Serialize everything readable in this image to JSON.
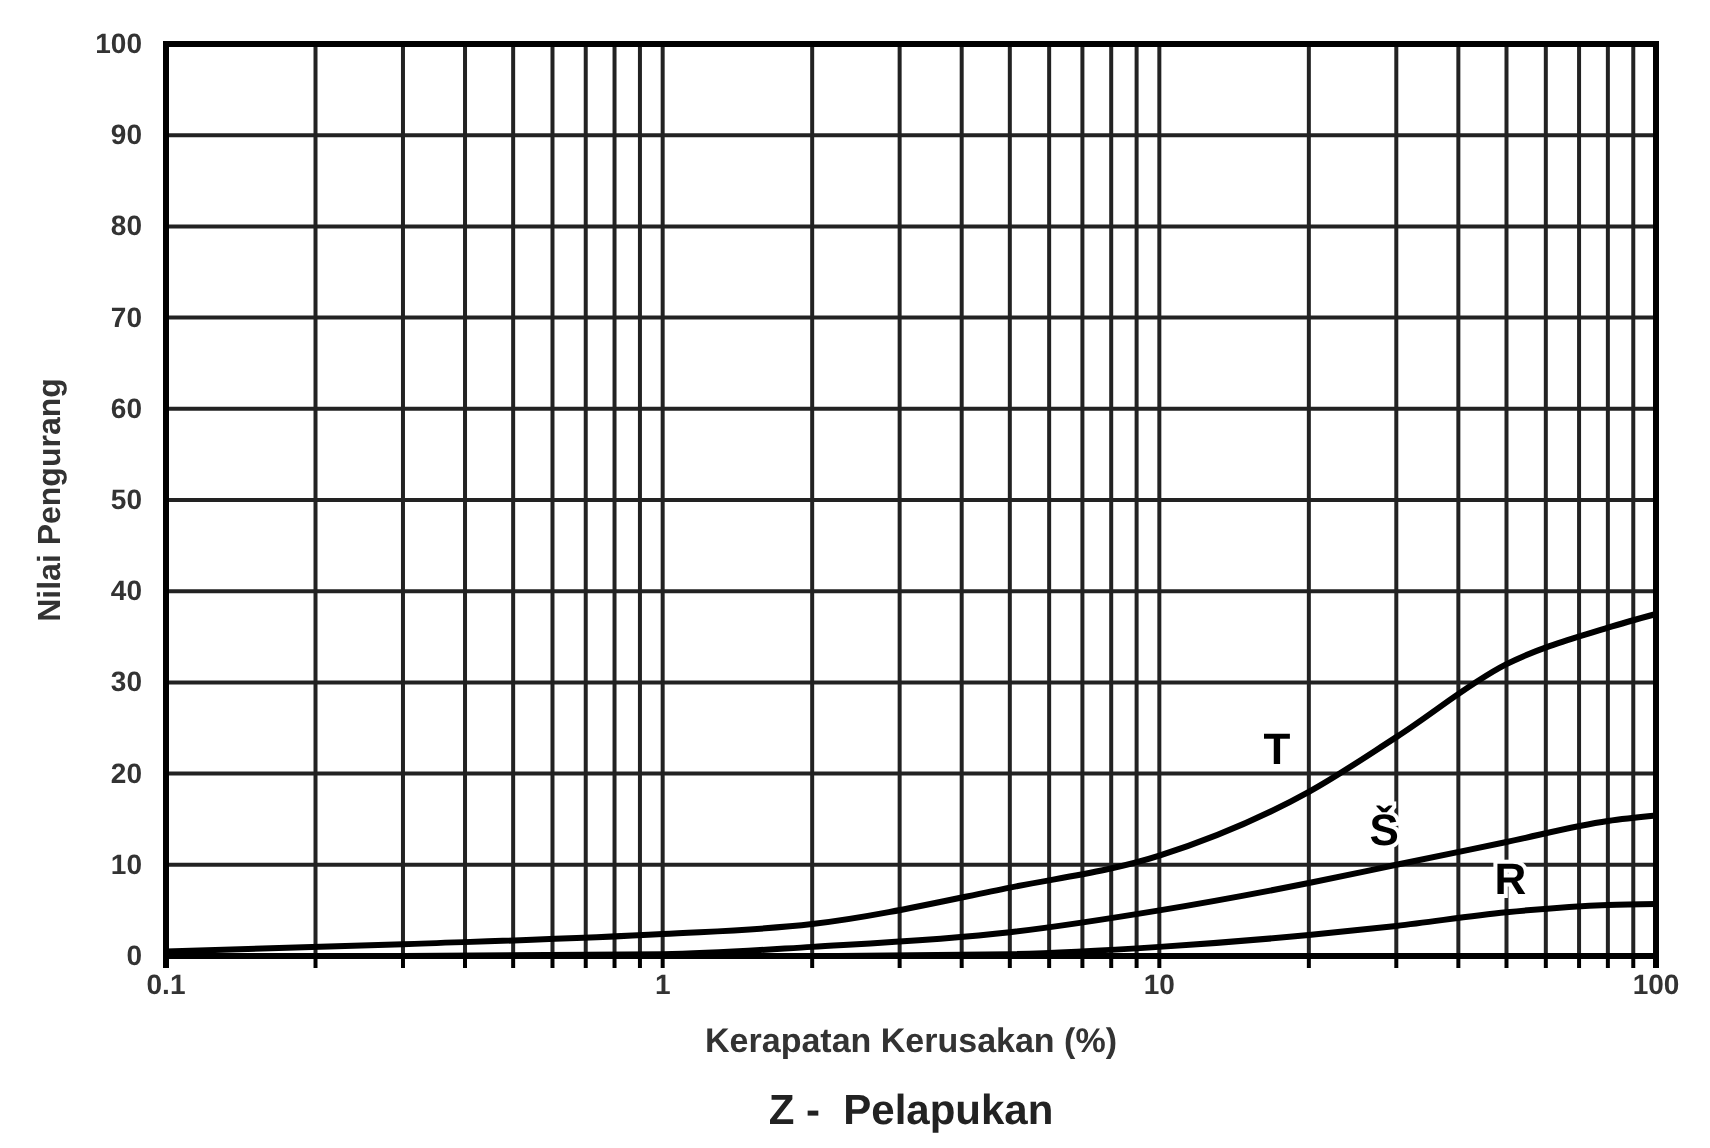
{
  "chart_data": {
    "type": "line",
    "title": "Z -  Pelapukan",
    "xlabel": "Kerapatan Kerusakan (%)",
    "ylabel": "Nilai Pengurang",
    "log": "x",
    "grid": true,
    "legend": false,
    "marker": "none",
    "line_style": "solid",
    "xlim": [
      0.1,
      100
    ],
    "ylim": [
      0,
      100
    ],
    "xticks": [
      0.1,
      {
        "value": 0.2,
        "label": null
      },
      {
        "value": 0.3,
        "label": null
      },
      {
        "value": 0.4,
        "label": null
      },
      {
        "value": 0.5,
        "label": null
      },
      {
        "value": 0.6,
        "label": null
      },
      {
        "value": 0.7,
        "label": null
      },
      {
        "value": 0.8,
        "label": null
      },
      {
        "value": 0.9,
        "label": null
      },
      1,
      {
        "value": 2,
        "label": null
      },
      {
        "value": 3,
        "label": null
      },
      {
        "value": 4,
        "label": null
      },
      {
        "value": 5,
        "label": null
      },
      {
        "value": 6,
        "label": null
      },
      {
        "value": 7,
        "label": null
      },
      {
        "value": 8,
        "label": null
      },
      {
        "value": 9,
        "label": null
      },
      10,
      {
        "value": 20,
        "label": null
      },
      {
        "value": 30,
        "label": null
      },
      {
        "value": 40,
        "label": null
      },
      {
        "value": 50,
        "label": null
      },
      {
        "value": 60,
        "label": null
      },
      {
        "value": 70,
        "label": null
      },
      {
        "value": 80,
        "label": null
      },
      {
        "value": 90,
        "label": null
      },
      100
    ],
    "yticks": [
      0,
      10,
      20,
      30,
      40,
      50,
      60,
      70,
      80,
      90,
      100
    ],
    "x": [
      0.1,
      0.3,
      1,
      2,
      5,
      10,
      20,
      30,
      50,
      80,
      100
    ],
    "series": [
      {
        "name": "T",
        "color": "#000000",
        "values": [
          0.5,
          1.3,
          2.4,
          3.5,
          7.5,
          11,
          18,
          24,
          32,
          36,
          37.5
        ]
      },
      {
        "name": "Š",
        "color": "#000000",
        "values": [
          0,
          0,
          0.2,
          1,
          2.6,
          5,
          8,
          10,
          12.5,
          14.8,
          15.4
        ]
      },
      {
        "name": "R",
        "color": "#000000",
        "values": [
          0,
          0,
          0,
          0,
          0.2,
          1,
          2.3,
          3.3,
          4.8,
          5.6,
          5.7
        ]
      }
    ]
  }
}
